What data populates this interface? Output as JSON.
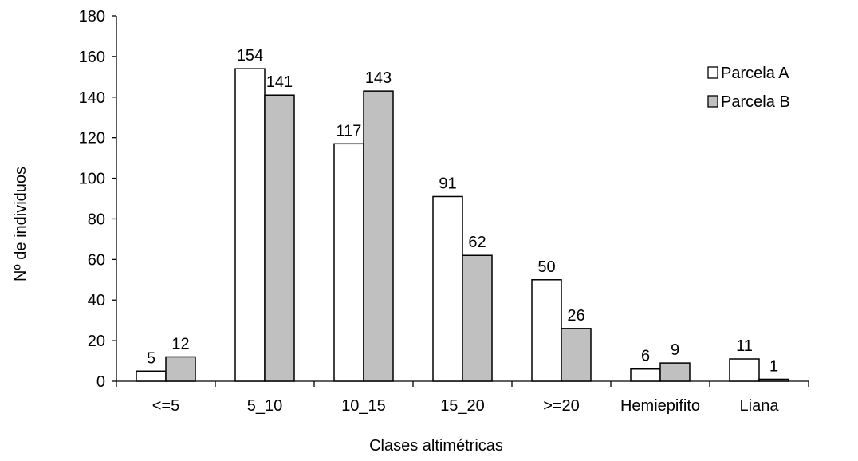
{
  "chart_data": {
    "type": "bar",
    "categories": [
      "<=5",
      "5_10",
      "10_15",
      "15_20",
      ">=20",
      "Hemiepifito",
      "Liana"
    ],
    "series": [
      {
        "name": "Parcela A",
        "values": [
          5,
          154,
          117,
          91,
          50,
          6,
          11
        ],
        "color": "#ffffff"
      },
      {
        "name": "Parcela B",
        "values": [
          12,
          141,
          143,
          62,
          26,
          9,
          1
        ],
        "color": "#c0c0c0"
      }
    ],
    "title": "",
    "xlabel": "Clases altimétricas",
    "ylabel": "Nº de individuos",
    "ylim": [
      0,
      180
    ],
    "yticks": [
      0,
      20,
      40,
      60,
      80,
      100,
      120,
      140,
      160,
      180
    ],
    "grid": false,
    "legend_position": "top-right",
    "data_labels": true
  }
}
